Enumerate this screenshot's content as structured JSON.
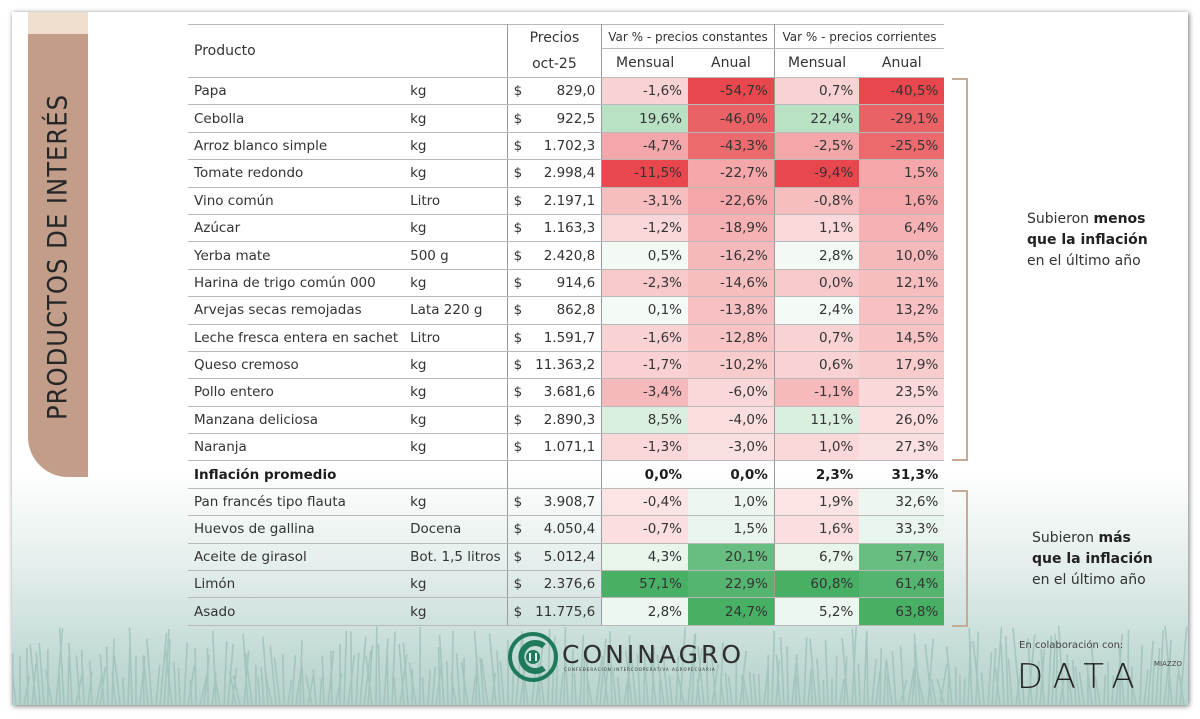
{
  "section_title": "PRODUCTOS DE INTERÉS",
  "table": {
    "headers": {
      "product": "Producto",
      "price_line1": "Precios",
      "price_line2": "oct-25",
      "group_constant": "Var % - precios constantes",
      "group_current": "Var % - precios corrientes",
      "monthly": "Mensual",
      "annual": "Anual"
    },
    "currency_symbol": "$",
    "rows_below": [
      {
        "product": "Papa",
        "unit": "kg",
        "price": "829,0",
        "const_m": "-1,6%",
        "const_a": "-54,7%",
        "curr_m": "0,7%",
        "curr_a": "-40,5%"
      },
      {
        "product": "Cebolla",
        "unit": "kg",
        "price": "922,5",
        "const_m": "19,6%",
        "const_a": "-46,0%",
        "curr_m": "22,4%",
        "curr_a": "-29,1%"
      },
      {
        "product": "Arroz blanco simple",
        "unit": "kg",
        "price": "1.702,3",
        "const_m": "-4,7%",
        "const_a": "-43,3%",
        "curr_m": "-2,5%",
        "curr_a": "-25,5%"
      },
      {
        "product": "Tomate redondo",
        "unit": "kg",
        "price": "2.998,4",
        "const_m": "-11,5%",
        "const_a": "-22,7%",
        "curr_m": "-9,4%",
        "curr_a": "1,5%"
      },
      {
        "product": "Vino común",
        "unit": "Litro",
        "price": "2.197,1",
        "const_m": "-3,1%",
        "const_a": "-22,6%",
        "curr_m": "-0,8%",
        "curr_a": "1,6%"
      },
      {
        "product": "Azúcar",
        "unit": "kg",
        "price": "1.163,3",
        "const_m": "-1,2%",
        "const_a": "-18,9%",
        "curr_m": "1,1%",
        "curr_a": "6,4%"
      },
      {
        "product": "Yerba mate",
        "unit": "500 g",
        "price": "2.420,8",
        "const_m": "0,5%",
        "const_a": "-16,2%",
        "curr_m": "2,8%",
        "curr_a": "10,0%"
      },
      {
        "product": "Harina de trigo común 000",
        "unit": "kg",
        "price": "914,6",
        "const_m": "-2,3%",
        "const_a": "-14,6%",
        "curr_m": "0,0%",
        "curr_a": "12,1%"
      },
      {
        "product": "Arvejas secas remojadas",
        "unit": "Lata 220 g",
        "price": "862,8",
        "const_m": "0,1%",
        "const_a": "-13,8%",
        "curr_m": "2,4%",
        "curr_a": "13,2%"
      },
      {
        "product": "Leche fresca entera en sachet",
        "unit": "Litro",
        "price": "1.591,7",
        "const_m": "-1,6%",
        "const_a": "-12,8%",
        "curr_m": "0,7%",
        "curr_a": "14,5%"
      },
      {
        "product": "Queso cremoso",
        "unit": "kg",
        "price": "11.363,2",
        "const_m": "-1,7%",
        "const_a": "-10,2%",
        "curr_m": "0,6%",
        "curr_a": "17,9%"
      },
      {
        "product": "Pollo entero",
        "unit": "kg",
        "price": "3.681,6",
        "const_m": "-3,4%",
        "const_a": "-6,0%",
        "curr_m": "-1,1%",
        "curr_a": "23,5%"
      },
      {
        "product": "Manzana deliciosa",
        "unit": "kg",
        "price": "2.890,3",
        "const_m": "8,5%",
        "const_a": "-4,0%",
        "curr_m": "11,1%",
        "curr_a": "26,0%"
      },
      {
        "product": "Naranja",
        "unit": "kg",
        "price": "1.071,1",
        "const_m": "-1,3%",
        "const_a": "-3,0%",
        "curr_m": "1,0%",
        "curr_a": "27,3%"
      }
    ],
    "average": {
      "label": "Inflación promedio",
      "const_m": "0,0%",
      "const_a": "0,0%",
      "curr_m": "2,3%",
      "curr_a": "31,3%"
    },
    "rows_above": [
      {
        "product": "Pan francés tipo flauta",
        "unit": "kg",
        "price": "3.908,7",
        "const_m": "-0,4%",
        "const_a": "1,0%",
        "curr_m": "1,9%",
        "curr_a": "32,6%"
      },
      {
        "product": "Huevos de gallina",
        "unit": "Docena",
        "price": "4.050,4",
        "const_m": "-0,7%",
        "const_a": "1,5%",
        "curr_m": "1,6%",
        "curr_a": "33,3%"
      },
      {
        "product": "Aceite de girasol",
        "unit": "Bot. 1,5 litros",
        "price": "5.012,4",
        "const_m": "4,3%",
        "const_a": "20,1%",
        "curr_m": "6,7%",
        "curr_a": "57,7%"
      },
      {
        "product": "Limón",
        "unit": "kg",
        "price": "2.376,6",
        "const_m": "57,1%",
        "const_a": "22,9%",
        "curr_m": "60,8%",
        "curr_a": "61,4%"
      },
      {
        "product": "Asado",
        "unit": "kg",
        "price": "11.775,6",
        "const_m": "2,8%",
        "const_a": "24,7%",
        "curr_m": "5,2%",
        "curr_a": "63,8%"
      }
    ],
    "heat_colors": {
      "negative": "#e8484d",
      "positive": "#48b065",
      "neutral": "#ffffff"
    }
  },
  "notes": {
    "less": {
      "pre": "Subieron ",
      "bold1": "menos",
      "bold2": "que la inflación",
      "post": "en el último año"
    },
    "more": {
      "pre": "Subieron ",
      "bold1": "más",
      "bold2": "que la inflación",
      "post": "en el último año"
    }
  },
  "footer": {
    "coninagro_name": "CONINAGRO",
    "coninagro_tagline": "CONFEDERACIÓN INTERCOOPERATIVA AGROPECUARIA",
    "collab_label": "En colaboración con:",
    "data_logo": "DATA",
    "data_sub": "MIAZZO"
  }
}
